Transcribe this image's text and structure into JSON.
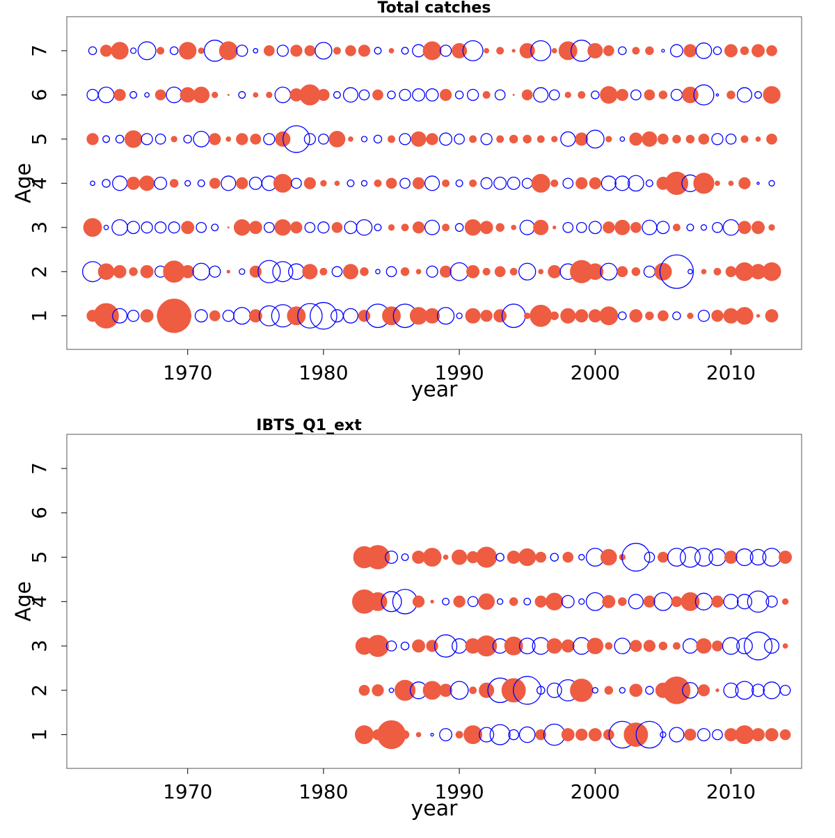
{
  "chart_data": [
    {
      "type": "bubble",
      "title": "Total catches",
      "x_label": "year",
      "y_label": "Age",
      "positive_color": "#ee5c42",
      "negative_color": "#0000ff",
      "xlim": [
        1961.1,
        2015.2
      ],
      "ylim": [
        0.24,
        7.77
      ],
      "xticks": [
        1970,
        1980,
        1990,
        2000,
        2010
      ],
      "yticks": [
        1,
        2,
        3,
        4,
        5,
        6,
        7
      ],
      "x": [
        1963,
        1964,
        1965,
        1966,
        1967,
        1968,
        1969,
        1970,
        1971,
        1972,
        1973,
        1974,
        1975,
        1976,
        1977,
        1978,
        1979,
        1980,
        1981,
        1982,
        1983,
        1984,
        1985,
        1986,
        1987,
        1988,
        1989,
        1990,
        1991,
        1992,
        1993,
        1994,
        1995,
        1996,
        1997,
        1998,
        1999,
        2000,
        2001,
        2002,
        2003,
        2004,
        2005,
        2006,
        2007,
        2008,
        2009,
        2010,
        2011,
        2012,
        2013
      ],
      "y": [
        1,
        2,
        3,
        4,
        5,
        6,
        7
      ],
      "values": [
        [
          1.0,
          2.2,
          -1.3,
          -1.0,
          1.1,
          0.6,
          3.0,
          0.6,
          -1.1,
          0.9,
          -1.0,
          -1.5,
          1.1,
          -1.8,
          -2.0,
          1.6,
          -2.2,
          -2.4,
          -1.1,
          -1.3,
          1.0,
          -2.1,
          1.6,
          -2.1,
          1.5,
          1.3,
          -1.5,
          -0.5,
          1.3,
          1.0,
          1.1,
          -2.1,
          0.5,
          1.9,
          0.7,
          1.3,
          1.1,
          1.1,
          1.6,
          -0.7,
          1.1,
          0.7,
          0.9,
          -0.7,
          0.5,
          -1.0,
          1.0,
          1.3,
          1.5,
          0.25,
          1.1
        ],
        [
          -1.8,
          1.4,
          1.1,
          0.7,
          1.1,
          -1.0,
          1.9,
          1.1,
          -1.5,
          -1.0,
          0.25,
          -0.5,
          1.0,
          -2.0,
          -1.8,
          -1.4,
          1.3,
          0.6,
          -0.9,
          1.3,
          0.7,
          -0.4,
          -0.9,
          0.7,
          0.4,
          -1.0,
          1.0,
          -1.6,
          1.1,
          0.6,
          0.9,
          0.6,
          -1.5,
          0.4,
          1.1,
          -1.4,
          2.0,
          1.4,
          -1.5,
          0.9,
          0.7,
          -1.0,
          1.5,
          -3.0,
          -0.4,
          0.4,
          0.6,
          0.9,
          1.6,
          1.3,
          1.6
        ],
        [
          1.6,
          -0.4,
          -1.4,
          -1.1,
          -1.0,
          -1.0,
          -1.0,
          1.1,
          -0.9,
          -0.6,
          0.1,
          1.4,
          1.1,
          -0.9,
          1.4,
          1.0,
          -0.9,
          -1.0,
          0.9,
          -1.1,
          -1.4,
          -0.6,
          0.5,
          0.6,
          1.0,
          -1.3,
          0.6,
          -0.7,
          1.4,
          1.1,
          0.7,
          0.4,
          -1.3,
          1.3,
          0.25,
          -0.9,
          -0.9,
          -1.1,
          1.0,
          1.3,
          0.9,
          -1.3,
          -1.1,
          0.6,
          -0.6,
          -0.5,
          -0.9,
          -1.4,
          1.1,
          1.1,
          0.5
        ],
        [
          -0.4,
          -0.7,
          -1.3,
          1.1,
          1.3,
          -1.1,
          0.7,
          -0.5,
          -0.6,
          0.9,
          -1.3,
          1.0,
          -1.1,
          -1.3,
          1.6,
          -0.9,
          1.0,
          0.5,
          0.4,
          -0.6,
          -0.5,
          0.6,
          0.9,
          -0.9,
          1.0,
          -1.3,
          0.6,
          -0.6,
          0.6,
          -1.0,
          -1.1,
          -1.1,
          -0.9,
          1.6,
          0.6,
          -0.9,
          1.0,
          1.0,
          -1.3,
          -1.3,
          -1.4,
          -0.6,
          1.1,
          2.0,
          -1.5,
          1.8,
          0.4,
          0.4,
          1.0,
          -0.2,
          -0.5
        ],
        [
          1.0,
          -0.6,
          -0.7,
          1.5,
          -1.0,
          -0.9,
          0.5,
          -0.7,
          -1.4,
          1.0,
          0.4,
          1.0,
          0.9,
          -1.0,
          1.3,
          -2.4,
          -1.0,
          -0.9,
          1.4,
          0.4,
          -0.5,
          -0.7,
          0.6,
          -1.0,
          1.3,
          1.0,
          -1.1,
          -0.9,
          0.6,
          -1.0,
          0.6,
          0.7,
          0.7,
          0.6,
          0.5,
          -1.3,
          1.1,
          -1.6,
          0.5,
          -0.4,
          1.1,
          1.3,
          0.9,
          0.7,
          0.7,
          0.9,
          -1.0,
          -0.9,
          0.6,
          0.4,
          0.9
        ],
        [
          -1.0,
          -1.4,
          1.0,
          -0.6,
          -0.4,
          0.9,
          -1.4,
          1.3,
          1.4,
          0.5,
          0.1,
          -0.6,
          0.4,
          0.5,
          -1.4,
          1.1,
          1.8,
          1.0,
          -0.6,
          -1.3,
          -0.9,
          0.9,
          -0.7,
          -1.0,
          -1.1,
          -1.1,
          1.0,
          -0.7,
          -1.0,
          0.6,
          -0.9,
          0.1,
          0.9,
          -1.3,
          -0.9,
          0.5,
          0.6,
          -0.7,
          1.5,
          1.0,
          -0.9,
          0.9,
          0.7,
          -1.0,
          1.4,
          -1.8,
          -0.2,
          0.7,
          -1.3,
          -0.6,
          1.5
        ],
        [
          -0.7,
          1.0,
          1.5,
          -0.5,
          -1.6,
          0.6,
          -0.7,
          1.5,
          0.5,
          -1.9,
          1.6,
          -1.0,
          -0.4,
          0.9,
          -1.0,
          1.0,
          0.9,
          -1.5,
          0.6,
          0.9,
          1.0,
          -0.6,
          0.4,
          -0.6,
          -1.1,
          1.6,
          -1.0,
          1.3,
          -1.8,
          0.4,
          0.6,
          0.25,
          1.3,
          -1.8,
          0.4,
          1.6,
          -1.9,
          1.3,
          0.9,
          -0.7,
          0.6,
          0.7,
          -0.25,
          -1.1,
          1.1,
          -1.4,
          -0.7,
          1.1,
          0.7,
          1.1,
          0.9
        ]
      ]
    },
    {
      "type": "bubble",
      "title": "IBTS_Q1_ext",
      "x_label": "year",
      "y_label": "Age",
      "positive_color": "#ee5c42",
      "negative_color": "#0000ff",
      "xlim": [
        1961.1,
        2015.2
      ],
      "ylim": [
        0.24,
        7.77
      ],
      "xticks": [
        1970,
        1980,
        1990,
        2000,
        2010
      ],
      "yticks": [
        1,
        2,
        3,
        4,
        5,
        6,
        7
      ],
      "x": [
        1983,
        1984,
        1985,
        1986,
        1987,
        1988,
        1989,
        1990,
        1991,
        1992,
        1993,
        1994,
        1995,
        1996,
        1997,
        1998,
        1999,
        2000,
        2001,
        2002,
        2003,
        2004,
        2005,
        2006,
        2007,
        2008,
        2009,
        2010,
        2011,
        2012,
        2013,
        2014
      ],
      "y": [
        1,
        2,
        3,
        4,
        5
      ],
      "values": [
        [
          1.6,
          0.9,
          2.5,
          0.7,
          0.4,
          -0.25,
          -1.1,
          0.6,
          1.6,
          -1.3,
          -1.8,
          -0.9,
          -1.4,
          0.9,
          -1.9,
          1.1,
          1.0,
          1.1,
          0.9,
          -2.4,
          2.1,
          -2.4,
          -0.5,
          -1.3,
          1.0,
          -1.1,
          -0.9,
          1.1,
          1.6,
          1.1,
          1.1,
          0.9
        ],
        [
          0.9,
          1.0,
          -0.4,
          1.8,
          -1.5,
          1.6,
          1.1,
          -1.6,
          0.6,
          1.3,
          -2.2,
          2.1,
          -2.5,
          -0.7,
          -1.3,
          -1.9,
          2.0,
          -0.5,
          0.7,
          -0.5,
          1.1,
          -0.7,
          1.3,
          2.4,
          -1.4,
          1.0,
          0.25,
          -1.3,
          -1.6,
          -1.1,
          -1.5,
          -0.9
        ],
        [
          1.5,
          1.9,
          -0.9,
          -0.7,
          1.1,
          1.0,
          -2.0,
          -1.3,
          1.3,
          1.8,
          -1.3,
          1.6,
          -1.4,
          -1.5,
          1.3,
          1.1,
          -1.5,
          1.4,
          0.6,
          -1.4,
          1.0,
          1.0,
          0.7,
          0.6,
          -1.3,
          1.3,
          0.9,
          -1.5,
          -1.4,
          -2.5,
          -1.3,
          0.4
        ],
        [
          2.1,
          1.6,
          -1.8,
          -2.2,
          1.0,
          0.25,
          -0.6,
          1.0,
          -0.9,
          1.4,
          -0.5,
          0.7,
          -0.6,
          1.0,
          1.5,
          -1.1,
          -0.5,
          -1.6,
          1.1,
          0.7,
          -1.3,
          1.0,
          -1.6,
          0.9,
          1.6,
          -1.5,
          1.0,
          -1.3,
          -1.3,
          -1.9,
          -1.0,
          0.5
        ],
        [
          1.9,
          2.1,
          -1.1,
          -0.6,
          1.1,
          1.6,
          0.4,
          1.3,
          1.0,
          1.8,
          -0.7,
          1.1,
          1.5,
          0.9,
          -0.7,
          0.9,
          -0.5,
          -1.6,
          1.4,
          0.5,
          -2.5,
          -0.9,
          0.9,
          -1.6,
          -1.8,
          -1.6,
          -1.5,
          1.1,
          -1.5,
          -1.4,
          -1.6,
          1.1
        ]
      ]
    }
  ]
}
